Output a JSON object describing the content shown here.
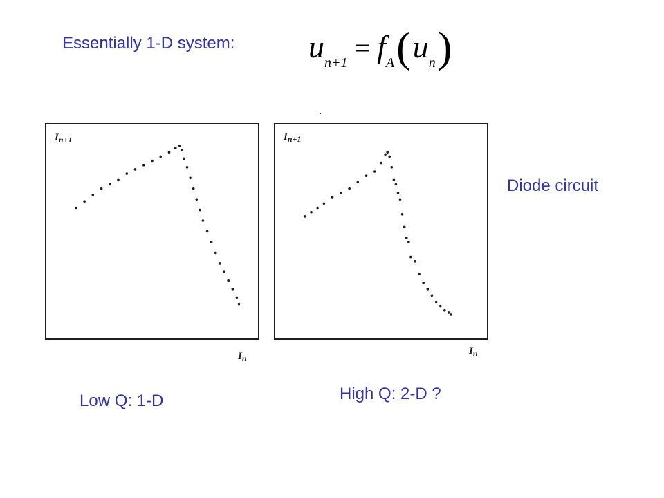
{
  "slide": {
    "heading": "Essentially 1-D system:",
    "side_caption": "Diode circuit",
    "caption_left": "Low Q: 1-D",
    "caption_right": "High Q: 2-D ?",
    "text_color": "#3333aa",
    "equation": {
      "lhs_var": "u",
      "lhs_sub": "n+1",
      "operator": "=",
      "func": "f",
      "func_sub": "A",
      "open_paren": "(",
      "arg_var": "u",
      "arg_sub": "n",
      "close_paren": ")"
    }
  },
  "chart_data": [
    {
      "type": "scatter",
      "title": "",
      "xlabel_var": "I",
      "xlabel_sub": "n",
      "ylabel_var": "I",
      "ylabel_sub": "n+1",
      "xlim": [
        0,
        1
      ],
      "ylim": [
        0,
        1
      ],
      "grid": false,
      "point_color": "#1e1e1e",
      "series": [
        {
          "x": [
            0.14,
            0.18,
            0.22,
            0.26,
            0.3,
            0.34,
            0.38,
            0.42,
            0.46,
            0.5,
            0.54,
            0.58,
            0.61,
            0.63,
            0.64,
            0.65,
            0.665,
            0.68,
            0.695,
            0.71,
            0.725,
            0.74,
            0.76,
            0.78,
            0.8,
            0.82,
            0.84,
            0.86,
            0.88,
            0.9,
            0.91
          ],
          "y": [
            0.61,
            0.64,
            0.67,
            0.7,
            0.72,
            0.74,
            0.77,
            0.79,
            0.81,
            0.83,
            0.85,
            0.87,
            0.89,
            0.9,
            0.88,
            0.84,
            0.8,
            0.75,
            0.7,
            0.65,
            0.6,
            0.55,
            0.5,
            0.45,
            0.4,
            0.35,
            0.31,
            0.27,
            0.23,
            0.19,
            0.16
          ]
        }
      ]
    },
    {
      "type": "scatter",
      "title": "",
      "xlabel_var": "I",
      "xlabel_sub": "n",
      "ylabel_var": "I",
      "ylabel_sub": "n+1",
      "xlim": [
        0,
        1
      ],
      "ylim": [
        0,
        1
      ],
      "grid": false,
      "point_color": "#1e1e1e",
      "series": [
        {
          "x": [
            0.14,
            0.17,
            0.2,
            0.23,
            0.27,
            0.31,
            0.35,
            0.39,
            0.43,
            0.47,
            0.5,
            0.52,
            0.53,
            0.54,
            0.55,
            0.56,
            0.57,
            0.58,
            0.59,
            0.6,
            0.61,
            0.62,
            0.63,
            0.64,
            0.66,
            0.68,
            0.7,
            0.72,
            0.74,
            0.76,
            0.78,
            0.8,
            0.82,
            0.83
          ],
          "y": [
            0.57,
            0.59,
            0.61,
            0.63,
            0.66,
            0.68,
            0.7,
            0.73,
            0.76,
            0.78,
            0.82,
            0.86,
            0.87,
            0.85,
            0.8,
            0.74,
            0.72,
            0.68,
            0.65,
            0.58,
            0.52,
            0.47,
            0.45,
            0.38,
            0.36,
            0.3,
            0.26,
            0.23,
            0.2,
            0.17,
            0.15,
            0.13,
            0.12,
            0.11
          ]
        }
      ]
    }
  ]
}
